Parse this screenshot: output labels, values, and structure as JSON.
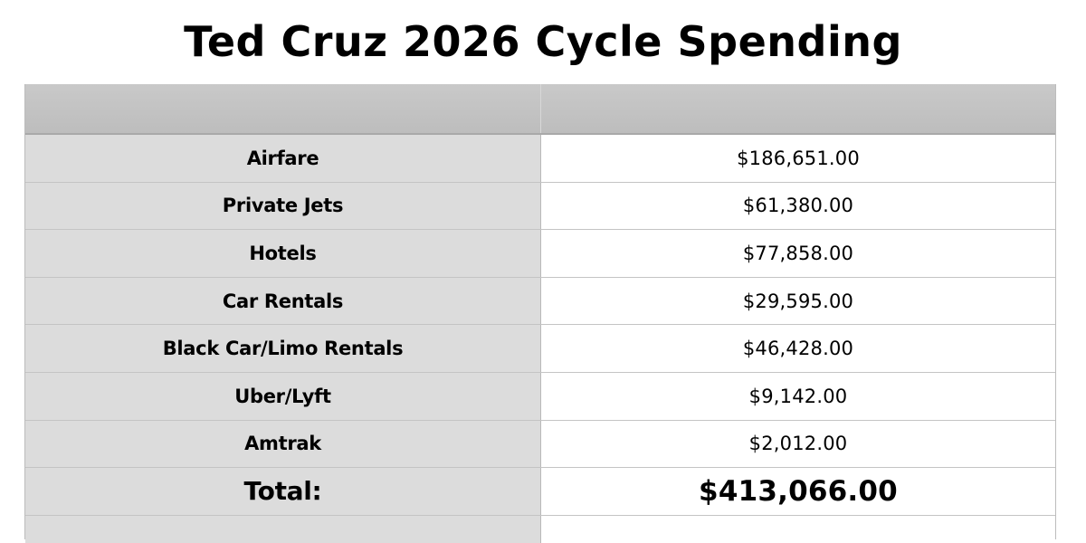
{
  "title": "Ted Cruz 2026 Cycle Spending",
  "table": {
    "header": [
      "",
      ""
    ],
    "rows": [
      {
        "label": "Airfare",
        "value": "$186,651.00"
      },
      {
        "label": "Private Jets",
        "value": "$61,380.00"
      },
      {
        "label": "Hotels",
        "value": "$77,858.00"
      },
      {
        "label": "Car Rentals",
        "value": "$29,595.00"
      },
      {
        "label": "Black Car/Limo Rentals",
        "value": "$46,428.00"
      },
      {
        "label": "Uber/Lyft",
        "value": "$9,142.00"
      },
      {
        "label": "Amtrak",
        "value": "$2,012.00"
      }
    ],
    "total": {
      "label": "Total:",
      "value": "$413,066.00"
    }
  },
  "colors": {
    "header_bg": "#c4c4c4",
    "label_bg": "#dcdcdc",
    "value_bg": "#ffffff",
    "grid": "#c4c4c4"
  }
}
